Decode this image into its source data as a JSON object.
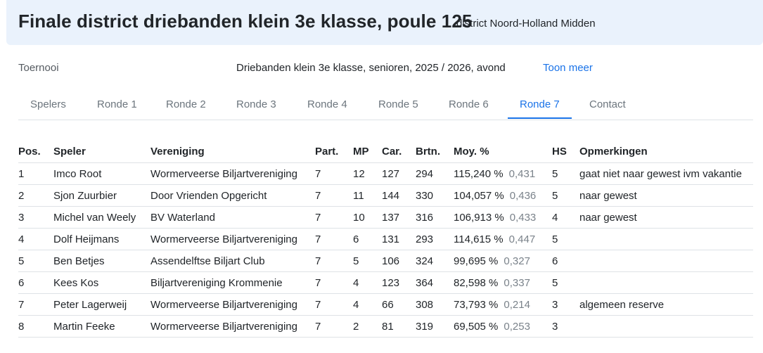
{
  "header": {
    "title": "Finale district driebanden klein 3e klasse, poule 125",
    "subtitle": "district Noord-Holland Midden"
  },
  "info": {
    "label": "Toernooi",
    "value": "Driebanden klein 3e klasse, senioren, 2025 / 2026, avond",
    "link": "Toon meer"
  },
  "tabs": [
    {
      "label": "Spelers"
    },
    {
      "label": "Ronde 1"
    },
    {
      "label": "Ronde 2"
    },
    {
      "label": "Ronde 3"
    },
    {
      "label": "Ronde 4"
    },
    {
      "label": "Ronde 5"
    },
    {
      "label": "Ronde 6"
    },
    {
      "label": "Ronde 7"
    },
    {
      "label": "Contact"
    }
  ],
  "active_tab": "Ronde 7",
  "colors": {
    "accent": "#1a73e8",
    "header_bg": "#eaf2fc"
  },
  "table": {
    "headers": [
      "Pos.",
      "Speler",
      "Vereniging",
      "Part.",
      "MP",
      "Car.",
      "Brtn.",
      "Moy. %",
      "HS",
      "Opmerkingen"
    ],
    "rows": [
      {
        "pos": "1",
        "speler": "Imco Root",
        "vereniging": "Wormerveerse Biljartvereniging",
        "part": "7",
        "mp": "12",
        "car": "127",
        "brtn": "294",
        "moy_pct": "115,240 %",
        "moy": "0,431",
        "hs": "5",
        "opm": "gaat niet naar gewest ivm vakantie"
      },
      {
        "pos": "2",
        "speler": "Sjon Zuurbier",
        "vereniging": "Door Vrienden Opgericht",
        "part": "7",
        "mp": "11",
        "car": "144",
        "brtn": "330",
        "moy_pct": "104,057 %",
        "moy": "0,436",
        "hs": "5",
        "opm": "naar gewest"
      },
      {
        "pos": "3",
        "speler": "Michel van Weely",
        "vereniging": "BV Waterland",
        "part": "7",
        "mp": "10",
        "car": "137",
        "brtn": "316",
        "moy_pct": "106,913 %",
        "moy": "0,433",
        "hs": "4",
        "opm": "naar gewest"
      },
      {
        "pos": "4",
        "speler": "Dolf Heijmans",
        "vereniging": "Wormerveerse Biljartvereniging",
        "part": "7",
        "mp": "6",
        "car": "131",
        "brtn": "293",
        "moy_pct": "114,615 %",
        "moy": "0,447",
        "hs": "5",
        "opm": ""
      },
      {
        "pos": "5",
        "speler": "Ben Betjes",
        "vereniging": "Assendelftse Biljart Club",
        "part": "7",
        "mp": "5",
        "car": "106",
        "brtn": "324",
        "moy_pct": "99,695 %",
        "moy": "0,327",
        "hs": "6",
        "opm": ""
      },
      {
        "pos": "6",
        "speler": "Kees Kos",
        "vereniging": "Biljartvereniging Krommenie",
        "part": "7",
        "mp": "4",
        "car": "123",
        "brtn": "364",
        "moy_pct": "82,598 %",
        "moy": "0,337",
        "hs": "5",
        "opm": ""
      },
      {
        "pos": "7",
        "speler": "Peter Lagerweij",
        "vereniging": "Wormerveerse Biljartvereniging",
        "part": "7",
        "mp": "4",
        "car": "66",
        "brtn": "308",
        "moy_pct": "73,793 %",
        "moy": "0,214",
        "hs": "3",
        "opm": "algemeen reserve"
      },
      {
        "pos": "8",
        "speler": "Martin Feeke",
        "vereniging": "Wormerveerse Biljartvereniging",
        "part": "7",
        "mp": "2",
        "car": "81",
        "brtn": "319",
        "moy_pct": "69,505 %",
        "moy": "0,253",
        "hs": "3",
        "opm": ""
      }
    ]
  }
}
